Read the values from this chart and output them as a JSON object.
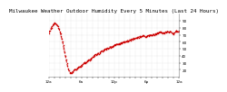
{
  "title": "Milwaukee Weather Outdoor Humidity Every 5 Minutes (Last 24 Hours)",
  "background_color": "#ffffff",
  "plot_bg_color": "#ffffff",
  "line_color": "#cc0000",
  "line_style": "--",
  "line_width": 0.7,
  "marker": "s",
  "marker_size": 1.0,
  "ylim": [
    10,
    100
  ],
  "yticks": [
    20,
    30,
    40,
    50,
    60,
    70,
    80,
    90
  ],
  "grid_color": "#c8c8c8",
  "title_fontsize": 4.2,
  "tick_fontsize": 3.0,
  "y_values": [
    72,
    74,
    76,
    78,
    80,
    82,
    83,
    85,
    86,
    87,
    86,
    85,
    84,
    82,
    80,
    78,
    75,
    72,
    68,
    64,
    60,
    55,
    50,
    45,
    40,
    35,
    30,
    26,
    22,
    19,
    17,
    16,
    15,
    16,
    17,
    18,
    19,
    20,
    21,
    20,
    21,
    22,
    23,
    24,
    25,
    24,
    25,
    26,
    27,
    28,
    29,
    30,
    31,
    30,
    31,
    32,
    33,
    34,
    35,
    34,
    35,
    36,
    37,
    38,
    39,
    40,
    41,
    42,
    41,
    42,
    43,
    44,
    43,
    44,
    45,
    46,
    47,
    46,
    47,
    48,
    49,
    50,
    49,
    50,
    51,
    50,
    51,
    52,
    53,
    52,
    53,
    54,
    53,
    54,
    55,
    56,
    55,
    56,
    57,
    56,
    57,
    58,
    57,
    58,
    59,
    58,
    59,
    60,
    59,
    60,
    61,
    60,
    61,
    62,
    61,
    62,
    63,
    62,
    63,
    64,
    63,
    64,
    65,
    64,
    65,
    66,
    65,
    66,
    67,
    66,
    67,
    68,
    67,
    68,
    69,
    68,
    69,
    68,
    67,
    68,
    67,
    68,
    69,
    68,
    69,
    70,
    69,
    70,
    69,
    70,
    71,
    70,
    71,
    72,
    71,
    72,
    73,
    72,
    73,
    74,
    73,
    74,
    73,
    72,
    73,
    72,
    73,
    74,
    73,
    74,
    75,
    74,
    73,
    74,
    75,
    74,
    73,
    72,
    71,
    72,
    73,
    74,
    75,
    76,
    75,
    74,
    75,
    76
  ],
  "n_points": 188,
  "n_xticks": 25,
  "x_tick_labels": [
    "12a",
    "",
    "",
    "",
    "",
    "",
    "6a",
    "",
    "",
    "",
    "",
    "",
    "12p",
    "",
    "",
    "",
    "",
    "",
    "6p",
    "",
    "",
    "",
    "",
    "",
    "12a"
  ]
}
